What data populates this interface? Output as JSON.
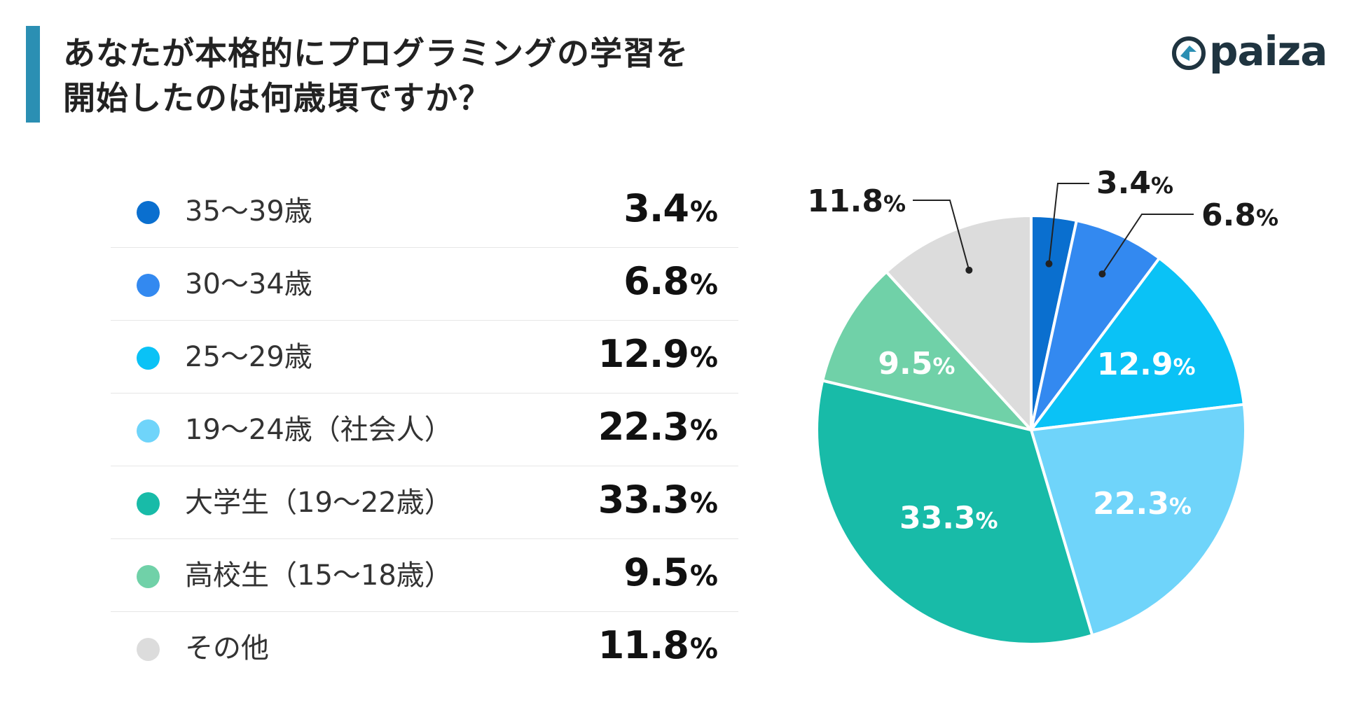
{
  "title": {
    "line1": "あなたが本格的にプログラミングの学習を",
    "line2": "開始したのは何歳頃ですか？"
  },
  "logo": {
    "text": "paiza",
    "icon": "paiza-logo-icon",
    "color": "#1f3440"
  },
  "accent_color": "#2b8fb3",
  "chart_data": {
    "type": "pie",
    "title": "あなたが本格的にプログラミングの学習を開始したのは何歳頃ですか？",
    "unit": "%",
    "start_angle": "12 o'clock",
    "direction": "clockwise",
    "legend_position": "left",
    "categories": [
      "35～39歳",
      "30～34歳",
      "25～29歳",
      "19～24歳（社会人）",
      "大学生（19～22歳）",
      "高校生（15～18歳）",
      "その他"
    ],
    "values": [
      3.4,
      6.8,
      12.9,
      22.3,
      33.3,
      9.5,
      11.8
    ],
    "value_labels": [
      "3.4",
      "6.8",
      "12.9",
      "22.3",
      "33.3",
      "9.5",
      "11.8"
    ],
    "colors": [
      "#0a6fcf",
      "#3389f0",
      "#0ac2f6",
      "#6fd4fa",
      "#18bba8",
      "#70d1a8",
      "#dcdcdc"
    ],
    "slice_label_text_colors": [
      "#1a1a1a",
      "#1a1a1a",
      "#ffffff",
      "#ffffff",
      "#ffffff",
      "#ffffff",
      "#1a1a1a"
    ],
    "labels_outside_with_leader": [
      "35～39歳",
      "30～34歳",
      "その他"
    ]
  }
}
